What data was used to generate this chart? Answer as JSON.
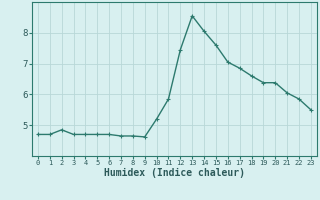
{
  "x": [
    0,
    1,
    2,
    3,
    4,
    5,
    6,
    7,
    8,
    9,
    10,
    11,
    12,
    13,
    14,
    15,
    16,
    17,
    18,
    19,
    20,
    21,
    22,
    23
  ],
  "y": [
    4.7,
    4.7,
    4.85,
    4.7,
    4.7,
    4.7,
    4.7,
    4.65,
    4.65,
    4.62,
    5.2,
    5.85,
    7.45,
    8.55,
    8.05,
    7.6,
    7.05,
    6.85,
    6.6,
    6.38,
    6.38,
    6.05,
    5.85,
    5.5
  ],
  "line_color": "#2d7a6e",
  "marker": "+",
  "markersize": 3.5,
  "linewidth": 1.0,
  "xlabel": "Humidex (Indice chaleur)",
  "xlabel_fontsize": 7,
  "background_color": "#d8f0f0",
  "grid_color": "#b8d8d8",
  "tick_color": "#2d7a6e",
  "label_color": "#2d5a5a",
  "ylim": [
    4.0,
    9.0
  ],
  "xlim": [
    -0.5,
    23.5
  ],
  "yticks": [
    5,
    6,
    7,
    8
  ],
  "xticks": [
    0,
    1,
    2,
    3,
    4,
    5,
    6,
    7,
    8,
    9,
    10,
    11,
    12,
    13,
    14,
    15,
    16,
    17,
    18,
    19,
    20,
    21,
    22,
    23
  ],
  "xtick_labels": [
    "0",
    "1",
    "2",
    "3",
    "4",
    "5",
    "6",
    "7",
    "8",
    "9",
    "10",
    "11",
    "12",
    "13",
    "14",
    "15",
    "16",
    "17",
    "18",
    "19",
    "20",
    "21",
    "22",
    "23"
  ]
}
